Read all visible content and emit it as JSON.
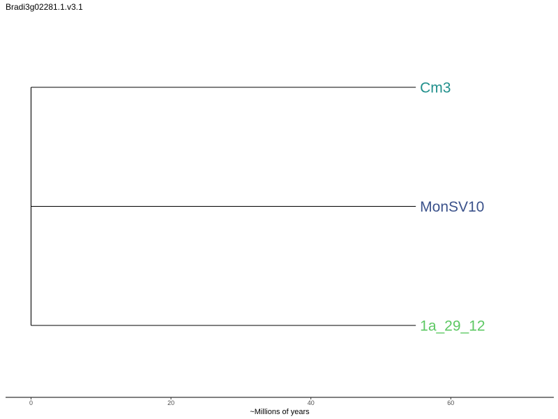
{
  "title": "Bradi3g02281.1.v3.1",
  "axis": {
    "label": "~Millions of years",
    "ticks": [
      0,
      20,
      40,
      60
    ],
    "range": [
      0,
      75
    ]
  },
  "tree": {
    "root_age": 0,
    "tips": [
      {
        "name": "Cm3",
        "branch_length": 55,
        "color": "#21908C"
      },
      {
        "name": "MonSV10",
        "branch_length": 55,
        "color": "#3B528B"
      },
      {
        "name": "1a_29_12",
        "branch_length": 55,
        "color": "#5DC863"
      }
    ]
  }
}
